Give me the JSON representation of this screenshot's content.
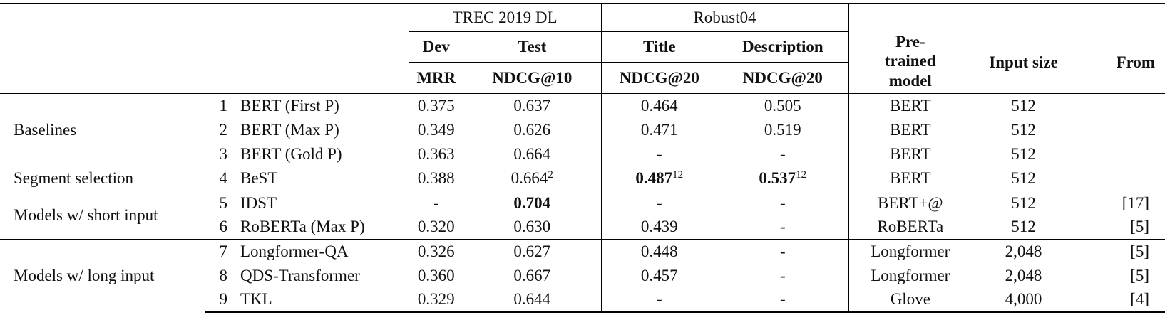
{
  "table": {
    "header": {
      "trec": "TREC 2019 DL",
      "robust": "Robust04",
      "dev": "Dev",
      "test": "Test",
      "title": "Title",
      "description": "Description",
      "mrr": "MRR",
      "ndcg10": "NDCG@10",
      "ndcg20_title": "NDCG@20",
      "ndcg20_desc": "NDCG@20",
      "pretrained": "Pre-trained model",
      "input_size": "Input size",
      "from": "From"
    },
    "groups": [
      {
        "name": "Baselines",
        "rows": [
          {
            "id": "1",
            "model": "BERT (First P)",
            "dev": "0.375",
            "test": "0.637",
            "title": "0.464",
            "desc": "0.505",
            "pretrained": "BERT",
            "input": "512"
          },
          {
            "id": "2",
            "model": "BERT (Max P)",
            "dev": "0.349",
            "test": "0.626",
            "title": "0.471",
            "desc": "0.519",
            "pretrained": "BERT",
            "input": "512"
          },
          {
            "id": "3",
            "model": "BERT (Gold P)",
            "dev": "0.363",
            "test": "0.664",
            "title": "-",
            "desc": "-",
            "pretrained": "BERT",
            "input": "512"
          }
        ]
      },
      {
        "name": "Segment selection",
        "rows": [
          {
            "id": "4",
            "model": "BeST",
            "dev": "0.388",
            "test": "0.664",
            "title": "0.487",
            "desc": "0.537",
            "pretrained": "BERT",
            "input": "512",
            "sup": {
              "test": "2",
              "title": "12",
              "desc": "12"
            },
            "bold": [
              "title",
              "desc"
            ]
          }
        ]
      },
      {
        "name": "Models w/ short input",
        "rows": [
          {
            "id": "5",
            "model": "IDST",
            "dev": "-",
            "test": "0.704",
            "title": "-",
            "desc": "-",
            "pretrained": "BERT+@",
            "input": "512",
            "from": "[17]",
            "bold": [
              "test"
            ]
          },
          {
            "id": "6",
            "model": "RoBERTa (Max P)",
            "dev": "0.320",
            "test": "0.630",
            "title": "0.439",
            "desc": "-",
            "pretrained": "RoBERTa",
            "input": "512",
            "from": "[5]"
          }
        ]
      },
      {
        "name": "Models w/ long input",
        "rows": [
          {
            "id": "7",
            "model": "Longformer-QA",
            "dev": "0.326",
            "test": "0.627",
            "title": "0.448",
            "desc": "-",
            "pretrained": "Longformer",
            "input": "2,048",
            "from": "[5]"
          },
          {
            "id": "8",
            "model": "QDS-Transformer",
            "dev": "0.360",
            "test": "0.667",
            "title": "0.457",
            "desc": "-",
            "pretrained": "Longformer",
            "input": "2,048",
            "from": "[5]"
          },
          {
            "id": "9",
            "model": "TKL",
            "dev": "0.329",
            "test": "0.644",
            "title": "-",
            "desc": "-",
            "pretrained": "Glove",
            "input": "4,000",
            "from": "[4]"
          }
        ]
      }
    ]
  }
}
